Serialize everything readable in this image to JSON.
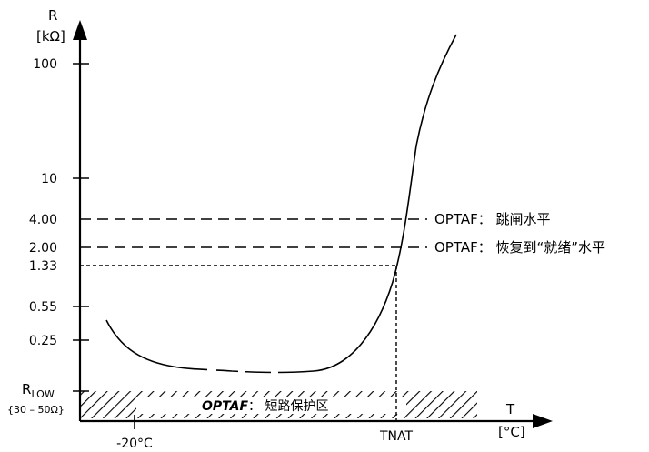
{
  "y_axis": {
    "name": "R",
    "unit": "[kΩ]"
  },
  "x_axis": {
    "name": "T",
    "unit": "[°C]"
  },
  "y_ticks": [
    "100",
    "10",
    "4.00",
    "2.00",
    "1.33",
    "0.55",
    "0.25"
  ],
  "r_low": {
    "label_main": "R",
    "label_sub": "LOW",
    "range": "{30 – 50Ω}"
  },
  "x_ticks": {
    "minus20": "-20°C",
    "tnat": "TNAT"
  },
  "annotations": {
    "trip": "OPTAF： 跳闸水平",
    "ready": "OPTAF： 恢复到“就绪”水平"
  },
  "zone": {
    "prefix": "OPTAF",
    "suffix": "： 短路保护区"
  },
  "colors": {
    "line": "#000000",
    "background": "#ffffff"
  }
}
